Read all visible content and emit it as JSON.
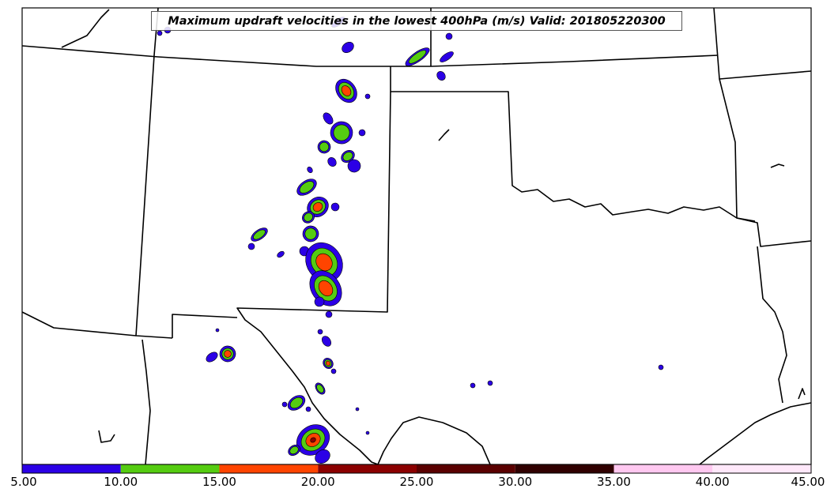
{
  "title": "Maximum updraft velocities in the lowest 400hPa (m/s) Valid: 201805220300",
  "colorbar": {
    "ticks": [
      "5.00",
      "10.00",
      "15.00",
      "20.00",
      "25.00",
      "30.00",
      "35.00",
      "40.00",
      "45.00"
    ],
    "bins": [
      {
        "from": 5,
        "to": 10,
        "color": "#2b00e6"
      },
      {
        "from": 10,
        "to": 15,
        "color": "#55cc11"
      },
      {
        "from": 15,
        "to": 20,
        "color": "#ff4400"
      },
      {
        "from": 20,
        "to": 25,
        "color": "#8b0000"
      },
      {
        "from": 25,
        "to": 30,
        "color": "#5a0000"
      },
      {
        "from": 30,
        "to": 35,
        "color": "#300000"
      },
      {
        "from": 35,
        "to": 40,
        "color": "#ffc8f0"
      },
      {
        "from": 40,
        "to": 45,
        "color": "#ffe8fa"
      }
    ]
  },
  "colors": {
    "level1": "#2b00e6",
    "level2": "#55cc11",
    "level3": "#ff4400",
    "level4": "#8b0000",
    "boundary": "#000000"
  }
}
